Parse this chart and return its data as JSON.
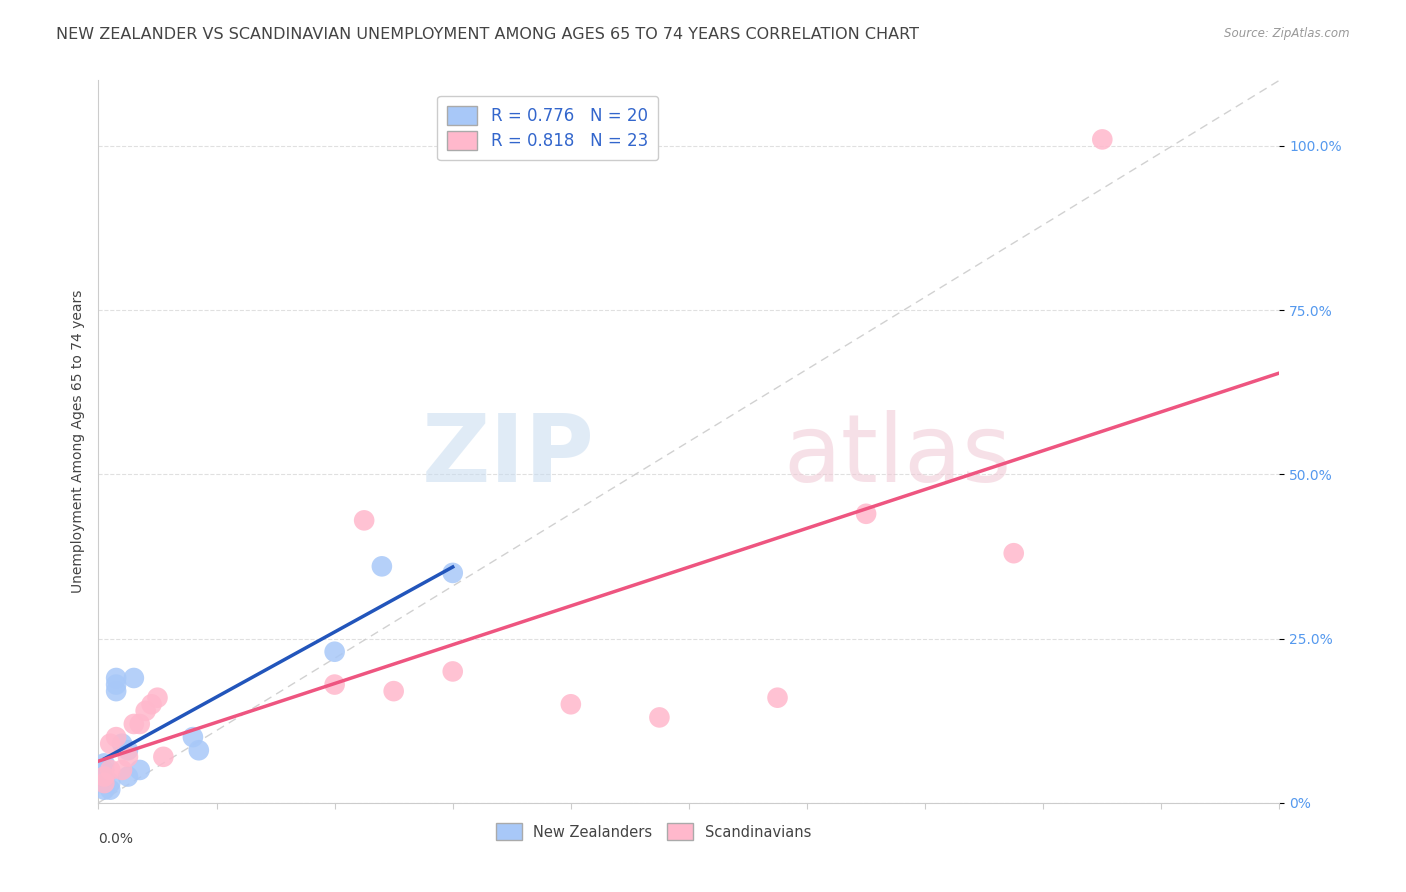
{
  "title": "NEW ZEALANDER VS SCANDINAVIAN UNEMPLOYMENT AMONG AGES 65 TO 74 YEARS CORRELATION CHART",
  "source": "Source: ZipAtlas.com",
  "ylabel": "Unemployment Among Ages 65 to 74 years",
  "xlim": [
    0,
    0.2
  ],
  "ylim": [
    0,
    1.1
  ],
  "yticks": [
    0.0,
    0.25,
    0.5,
    0.75,
    1.0
  ],
  "ytick_labels": [
    "0%",
    "25.0%",
    "50.0%",
    "75.0%",
    "100.0%"
  ],
  "nz_R": 0.776,
  "nz_N": 20,
  "sc_R": 0.818,
  "sc_N": 23,
  "nz_color": "#A8C8F8",
  "sc_color": "#FFB8CC",
  "nz_line_color": "#2255BB",
  "sc_line_color": "#EE5580",
  "ref_line_color": "#CCCCCC",
  "nz_points_x": [
    0.001,
    0.001,
    0.001,
    0.001,
    0.001,
    0.002,
    0.002,
    0.003,
    0.003,
    0.003,
    0.004,
    0.005,
    0.005,
    0.006,
    0.007,
    0.016,
    0.017,
    0.04,
    0.048,
    0.06
  ],
  "nz_points_y": [
    0.02,
    0.03,
    0.04,
    0.05,
    0.06,
    0.02,
    0.03,
    0.17,
    0.18,
    0.19,
    0.09,
    0.04,
    0.08,
    0.19,
    0.05,
    0.1,
    0.08,
    0.23,
    0.36,
    0.35
  ],
  "sc_points_x": [
    0.001,
    0.001,
    0.002,
    0.002,
    0.003,
    0.004,
    0.005,
    0.006,
    0.007,
    0.008,
    0.009,
    0.01,
    0.011,
    0.04,
    0.045,
    0.05,
    0.06,
    0.08,
    0.095,
    0.115,
    0.13,
    0.155,
    0.17
  ],
  "sc_points_y": [
    0.03,
    0.04,
    0.05,
    0.09,
    0.1,
    0.05,
    0.07,
    0.12,
    0.12,
    0.14,
    0.15,
    0.16,
    0.07,
    0.18,
    0.43,
    0.17,
    0.2,
    0.15,
    0.13,
    0.16,
    0.44,
    0.38,
    1.01
  ],
  "background_color": "#FFFFFF",
  "title_color": "#444444",
  "source_color": "#999999",
  "ytick_color": "#5599EE",
  "title_fontsize": 11.5,
  "axis_label_fontsize": 10,
  "tick_fontsize": 10,
  "legend_fontsize": 12,
  "grid_color": "#DDDDDD",
  "spine_color": "#CCCCCC"
}
